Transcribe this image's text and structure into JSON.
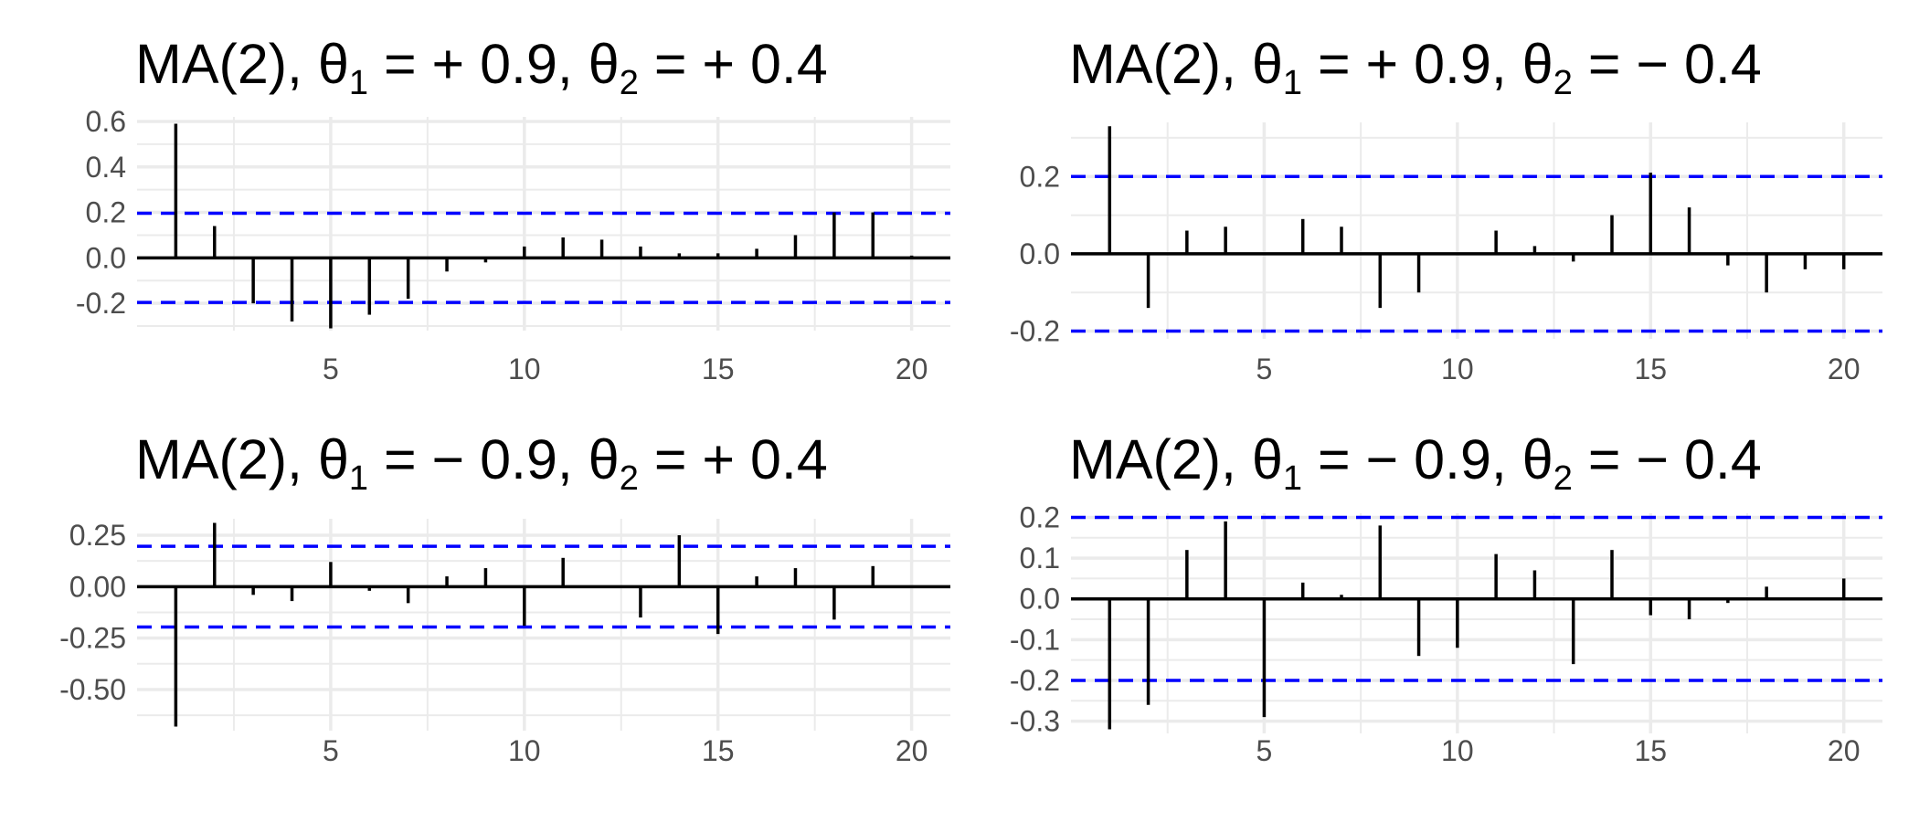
{
  "chart_data": [
    {
      "type": "bar",
      "title_parts": [
        "MA(2), θ",
        "1",
        " =  + 0.9, θ",
        "2",
        " =  + 0.4"
      ],
      "x": [
        1,
        2,
        3,
        4,
        5,
        6,
        7,
        8,
        9,
        10,
        11,
        12,
        13,
        14,
        15,
        16,
        17,
        18,
        19,
        20
      ],
      "values": [
        0.59,
        0.14,
        -0.2,
        -0.28,
        -0.31,
        -0.25,
        -0.18,
        -0.06,
        -0.02,
        0.05,
        0.09,
        0.08,
        0.05,
        0.02,
        0.02,
        0.04,
        0.1,
        0.2,
        0.2,
        0.01
      ],
      "xlim": [
        0,
        21
      ],
      "ylim": [
        -0.32,
        0.62
      ],
      "xticks": [
        5,
        10,
        15,
        20
      ],
      "xtick_labels": [
        "5",
        "10",
        "15",
        "20"
      ],
      "yticks": [
        0.6,
        0.4,
        0.2,
        0.0,
        -0.2
      ],
      "ytick_labels": [
        "0.6",
        "0.4",
        "0.2",
        "0.0",
        "-0.2"
      ],
      "conf_bounds": [
        0.196,
        -0.196
      ],
      "grid": true,
      "colors": {
        "bars": "#000000",
        "conf": "#0000ff",
        "grid": "#ebebeb"
      }
    },
    {
      "type": "bar",
      "title_parts": [
        "MA(2), θ",
        "1",
        " =  + 0.9, θ",
        "2",
        " =  − 0.4"
      ],
      "x": [
        1,
        2,
        3,
        4,
        5,
        6,
        7,
        8,
        9,
        10,
        11,
        12,
        13,
        14,
        15,
        16,
        17,
        18,
        19,
        20
      ],
      "values": [
        0.33,
        -0.14,
        0.06,
        0.07,
        0.0,
        0.09,
        0.07,
        -0.14,
        -0.1,
        0.0,
        0.06,
        0.02,
        -0.02,
        0.1,
        0.21,
        0.12,
        -0.03,
        -0.1,
        -0.04,
        -0.04
      ],
      "xlim": [
        0,
        21
      ],
      "ylim": [
        -0.22,
        0.34
      ],
      "xticks": [
        5,
        10,
        15,
        20
      ],
      "xtick_labels": [
        "5",
        "10",
        "15",
        "20"
      ],
      "yticks": [
        0.2,
        0.0,
        -0.2
      ],
      "ytick_labels": [
        "0.2",
        "0.0",
        "-0.2"
      ],
      "conf_bounds": [
        0.2,
        -0.2
      ],
      "grid": true,
      "colors": {
        "bars": "#000000",
        "conf": "#0000ff",
        "grid": "#ebebeb"
      }
    },
    {
      "type": "bar",
      "title_parts": [
        "MA(2), θ",
        "1",
        " =  − 0.9, θ",
        "2",
        " =  + 0.4"
      ],
      "x": [
        1,
        2,
        3,
        4,
        5,
        6,
        7,
        8,
        9,
        10,
        11,
        12,
        13,
        14,
        15,
        16,
        17,
        18,
        19,
        20
      ],
      "values": [
        -0.68,
        0.31,
        -0.04,
        -0.07,
        0.12,
        -0.02,
        -0.08,
        0.05,
        0.09,
        -0.19,
        0.14,
        0.0,
        -0.15,
        0.25,
        -0.23,
        0.05,
        0.09,
        -0.16,
        0.1,
        0.0
      ],
      "xlim": [
        0,
        21
      ],
      "ylim": [
        -0.7,
        0.33
      ],
      "xticks": [
        5,
        10,
        15,
        20
      ],
      "xtick_labels": [
        "5",
        "10",
        "15",
        "20"
      ],
      "yticks": [
        0.25,
        0.0,
        -0.25,
        -0.5
      ],
      "ytick_labels": [
        "0.25",
        "0.00",
        "-0.25",
        "-0.50"
      ],
      "conf_bounds": [
        0.196,
        -0.196
      ],
      "grid": true,
      "colors": {
        "bars": "#000000",
        "conf": "#0000ff",
        "grid": "#ebebeb"
      }
    },
    {
      "type": "bar",
      "title_parts": [
        "MA(2), θ",
        "1",
        " =  − 0.9, θ",
        "2",
        " =  − 0.4"
      ],
      "x": [
        1,
        2,
        3,
        4,
        5,
        6,
        7,
        8,
        9,
        10,
        11,
        12,
        13,
        14,
        15,
        16,
        17,
        18,
        19,
        20
      ],
      "values": [
        -0.32,
        -0.26,
        0.12,
        0.19,
        -0.29,
        0.04,
        0.01,
        0.18,
        -0.14,
        -0.12,
        0.11,
        0.07,
        -0.16,
        0.12,
        -0.04,
        -0.05,
        -0.01,
        0.03,
        0.0,
        0.05
      ],
      "xlim": [
        0,
        21
      ],
      "ylim": [
        -0.33,
        0.21
      ],
      "xticks": [
        5,
        10,
        15,
        20
      ],
      "xtick_labels": [
        "5",
        "10",
        "15",
        "20"
      ],
      "yticks": [
        0.2,
        0.1,
        0.0,
        -0.1,
        -0.2,
        -0.3
      ],
      "ytick_labels": [
        "0.2",
        "0.1",
        "0.0",
        "-0.1",
        "-0.2",
        "-0.3"
      ],
      "conf_bounds": [
        0.2,
        -0.2
      ],
      "grid": true,
      "colors": {
        "bars": "#000000",
        "conf": "#0000ff",
        "grid": "#ebebeb"
      }
    }
  ]
}
